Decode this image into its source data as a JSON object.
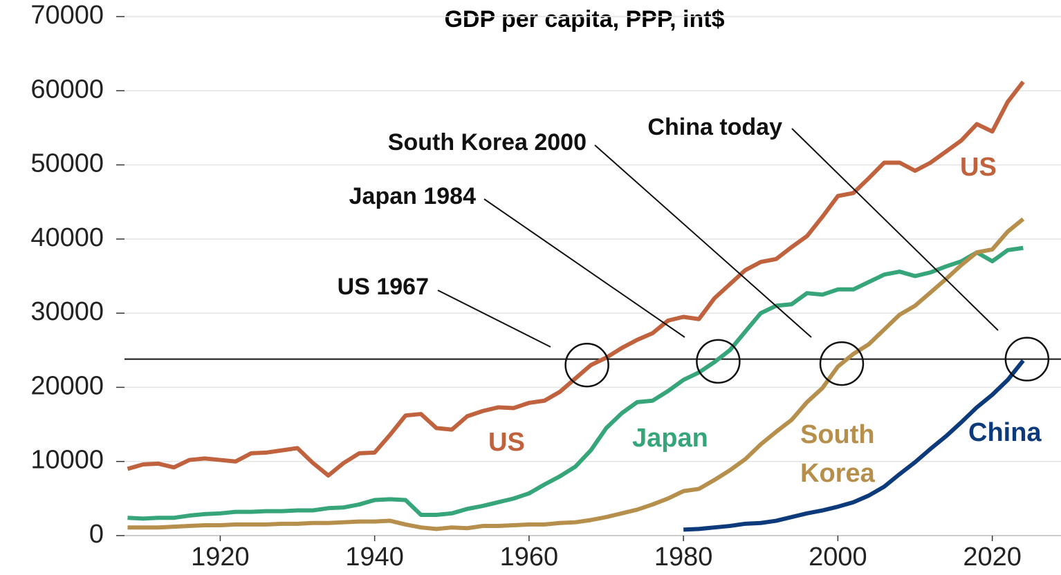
{
  "chart_data": {
    "type": "line",
    "title": "GDP per capita, PPP, int$",
    "x": [
      1908,
      1910,
      1912,
      1914,
      1916,
      1918,
      1920,
      1922,
      1924,
      1926,
      1928,
      1930,
      1932,
      1934,
      1936,
      1938,
      1940,
      1942,
      1944,
      1946,
      1948,
      1950,
      1952,
      1954,
      1956,
      1958,
      1960,
      1962,
      1964,
      1966,
      1968,
      1970,
      1972,
      1974,
      1976,
      1978,
      1980,
      1982,
      1984,
      1986,
      1988,
      1990,
      1992,
      1994,
      1996,
      1998,
      2000,
      2002,
      2004,
      2006,
      2008,
      2010,
      2012,
      2014,
      2016,
      2018,
      2020,
      2022,
      2024
    ],
    "series": [
      {
        "name": "US",
        "color": "#c0623d",
        "values": [
          9000,
          9600,
          9700,
          9200,
          10200,
          10400,
          10200,
          10000,
          11100,
          11200,
          11500,
          11800,
          9800,
          8100,
          9800,
          11100,
          11200,
          13600,
          16200,
          16400,
          14500,
          14300,
          16100,
          16800,
          17300,
          17200,
          17900,
          18200,
          19400,
          21200,
          23000,
          24000,
          25300,
          26400,
          27300,
          29000,
          29500,
          29200,
          32000,
          33900,
          35800,
          36900,
          37300,
          38900,
          40400,
          43000,
          45800,
          46200,
          48200,
          50300,
          50300,
          49200,
          50300,
          51800,
          53300,
          55500,
          54500,
          58500,
          61200
        ]
      },
      {
        "name": "Japan",
        "color": "#36a57a",
        "values": [
          2400,
          2300,
          2400,
          2400,
          2700,
          2900,
          3000,
          3200,
          3200,
          3300,
          3300,
          3400,
          3400,
          3700,
          3800,
          4200,
          4800,
          4900,
          4800,
          2800,
          2800,
          3000,
          3600,
          4000,
          4500,
          5000,
          5700,
          6900,
          8000,
          9300,
          11500,
          14500,
          16500,
          18000,
          18200,
          19500,
          21000,
          22000,
          23400,
          25000,
          27500,
          30000,
          31000,
          31200,
          32700,
          32500,
          33200,
          33200,
          34200,
          35200,
          35600,
          35000,
          35500,
          36300,
          37000,
          38200,
          37000,
          38500,
          38800
        ]
      },
      {
        "name": "South Korea",
        "color": "#b58f4b",
        "values": [
          1100,
          1100,
          1100,
          1200,
          1300,
          1400,
          1400,
          1500,
          1500,
          1500,
          1600,
          1600,
          1700,
          1700,
          1800,
          1900,
          1900,
          2000,
          1500,
          1100,
          900,
          1100,
          1000,
          1300,
          1300,
          1400,
          1500,
          1500,
          1700,
          1800,
          2100,
          2500,
          3000,
          3500,
          4200,
          5000,
          6000,
          6300,
          7500,
          8800,
          10300,
          12300,
          14000,
          15600,
          18000,
          19900,
          22800,
          24500,
          25800,
          27800,
          29800,
          31000,
          32800,
          34600,
          36500,
          38200,
          38600,
          41000,
          42700
        ]
      },
      {
        "name": "China",
        "color": "#0d3a7a",
        "values": [
          null,
          null,
          null,
          null,
          null,
          null,
          null,
          null,
          null,
          null,
          null,
          null,
          null,
          null,
          null,
          null,
          null,
          null,
          null,
          null,
          null,
          null,
          null,
          null,
          null,
          null,
          null,
          null,
          null,
          null,
          null,
          null,
          null,
          null,
          null,
          null,
          800,
          900,
          1100,
          1300,
          1600,
          1700,
          2000,
          2500,
          3000,
          3400,
          3900,
          4500,
          5400,
          6600,
          8300,
          9900,
          11700,
          13400,
          15300,
          17300,
          19000,
          21000,
          23600
        ]
      }
    ],
    "reference_y": 23800,
    "annotations": [
      {
        "text": "US 1967",
        "x": 1967.5,
        "y": 23000
      },
      {
        "text": "Japan 1984",
        "x": 1984.5,
        "y": 23500
      },
      {
        "text": "South Korea 2000",
        "x": 2000.5,
        "y": 23200
      },
      {
        "text": "China today",
        "x": 2024.5,
        "y": 23800
      }
    ],
    "xlim": [
      1907.6,
      2028.9
    ],
    "xticks": [
      1920,
      1940,
      1960,
      1980,
      2000,
      2020
    ],
    "ylim": [
      0,
      70000
    ],
    "yticks": [
      0,
      10000,
      20000,
      30000,
      40000,
      50000,
      60000,
      70000
    ],
    "grid": true
  }
}
